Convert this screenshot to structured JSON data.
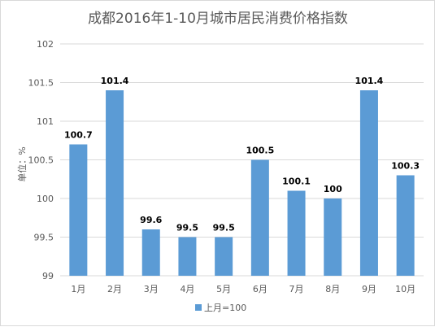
{
  "chart_data": {
    "type": "bar",
    "title": "成都2016年1-10月城市居民消费价格指数",
    "ylabel": "单位：%",
    "xlabel": "",
    "categories": [
      "1月",
      "2月",
      "3月",
      "4月",
      "5月",
      "6月",
      "7月",
      "8月",
      "9月",
      "10月"
    ],
    "series": [
      {
        "name": "上月=100",
        "values": [
          100.7,
          101.4,
          99.6,
          99.5,
          99.5,
          100.5,
          100.1,
          100,
          101.4,
          100.3
        ]
      }
    ],
    "ylim": [
      99,
      102
    ],
    "yticks": [
      "99",
      "99.5",
      "100",
      "100.5",
      "101",
      "101.5",
      "102"
    ],
    "data_labels": [
      "100.7",
      "101.4",
      "99.6",
      "99.5",
      "99.5",
      "100.5",
      "100.1",
      "100",
      "101.4",
      "100.3"
    ],
    "grid": true,
    "legend_position": "bottom",
    "bar_color": "#5b9bd5"
  }
}
